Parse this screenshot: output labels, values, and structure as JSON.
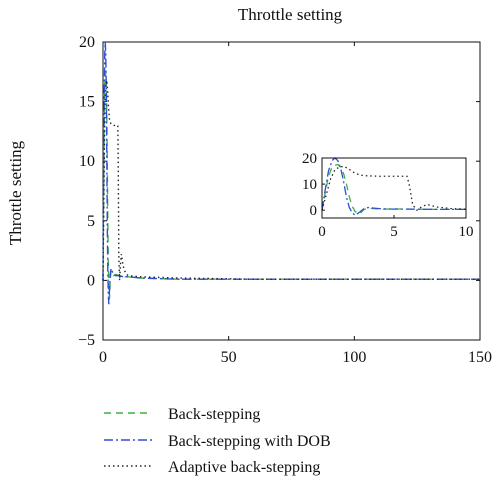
{
  "chart_data": {
    "type": "line",
    "title": "Throttle setting",
    "xlabel": "",
    "ylabel": "Throttle setting",
    "xlim": [
      0,
      150
    ],
    "ylim": [
      -5,
      20
    ],
    "xticks": [
      "0",
      "50",
      "100",
      "150"
    ],
    "yticks": [
      "−5",
      "0",
      "5",
      "10",
      "15",
      "20"
    ],
    "xtick_values": [
      0,
      50,
      100,
      150
    ],
    "ytick_values": [
      -5,
      0,
      5,
      10,
      15,
      20
    ],
    "grid": false,
    "legend_placement": "below",
    "series": [
      {
        "name": "Back-stepping",
        "color": "#3cb043",
        "dash": "7,5",
        "x": [
          0,
          0.2,
          0.45,
          0.7,
          0.9,
          1.1,
          1.3,
          1.5,
          1.7,
          1.9,
          2.1,
          2.3,
          2.6,
          2.9,
          3.2,
          3.6,
          4.2,
          5,
          6.5,
          8,
          10,
          15,
          30,
          60,
          100,
          150
        ],
        "y": [
          0,
          6,
          13,
          16.5,
          17.2,
          17.5,
          16.5,
          14,
          10,
          5,
          1.5,
          -0.5,
          -1.5,
          0.2,
          0.8,
          0.6,
          0.4,
          0.5,
          0.4,
          0.3,
          0.3,
          0.2,
          0.1,
          0.1,
          0.1,
          0.1
        ]
      },
      {
        "name": "Back-stepping with DOB",
        "color": "#2b4fd6",
        "dash": "9,3,2,3",
        "x": [
          0,
          0.2,
          0.45,
          0.7,
          0.9,
          1.1,
          1.3,
          1.5,
          1.7,
          1.9,
          2.1,
          2.3,
          2.6,
          2.9,
          3.2,
          3.6,
          4.2,
          5,
          6.5,
          8,
          10,
          15,
          30,
          60,
          100,
          150
        ],
        "y": [
          0,
          7,
          15,
          19,
          20,
          19,
          16,
          11,
          5,
          1,
          -1,
          -2,
          -0.8,
          0.5,
          1,
          0.8,
          0.5,
          0.4,
          0.4,
          0.3,
          0.3,
          0.2,
          0.1,
          0.1,
          0.1,
          0.1
        ]
      },
      {
        "name": "Adaptive back-stepping",
        "color": "#222222",
        "dash": "1.5,3",
        "x": [
          0,
          0.3,
          0.6,
          0.9,
          1.2,
          1.5,
          1.8,
          2.2,
          2.6,
          3.0,
          3.5,
          4,
          5,
          5.9,
          6.05,
          6.3,
          6.6,
          6.9,
          7.3,
          8,
          9,
          10,
          15,
          30,
          60,
          100,
          150
        ],
        "y": [
          0,
          6,
          12,
          15.5,
          16.5,
          16.8,
          16,
          14.5,
          13.5,
          13.2,
          13.1,
          13,
          13,
          13,
          10,
          2,
          0,
          1.2,
          2.2,
          1.2,
          0.6,
          0.4,
          0.3,
          0.2,
          0.1,
          0.1,
          0.1
        ]
      }
    ],
    "inset": {
      "xlim": [
        0,
        10
      ],
      "ylim": [
        -3,
        20
      ],
      "xticks": [
        "0",
        "5",
        "10"
      ],
      "yticks": [
        "0",
        "10",
        "20"
      ],
      "xtick_values": [
        0,
        5,
        10
      ],
      "ytick_values": [
        0,
        10,
        20
      ]
    }
  }
}
